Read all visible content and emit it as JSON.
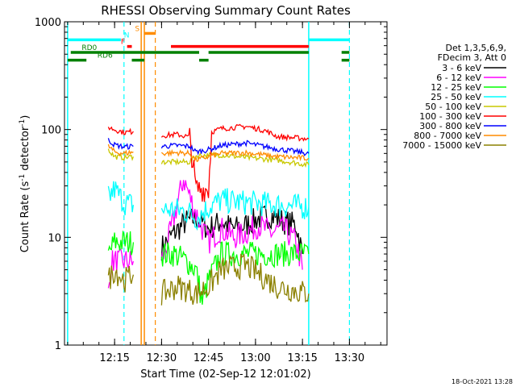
{
  "chart_data": {
    "type": "line",
    "title": "RHESSI Observing Summary Count Rates",
    "xlabel": "Start Time (02-Sep-12 12:01:02)",
    "ylabel_main": "Count Rate (s",
    "ylabel_sup1": "-1",
    "ylabel_mid": " detector",
    "ylabel_sup2": "-1",
    "ylabel_end": ")",
    "ylim": [
      1,
      1000
    ],
    "y_scale": "log",
    "x_range_min": [
      0,
      150
    ],
    "y_ticks": [
      {
        "value": 1,
        "label": "1"
      },
      {
        "value": 10,
        "label": "10"
      },
      {
        "value": 100,
        "label": "100"
      },
      {
        "value": 1000,
        "label": "1000"
      }
    ],
    "x_ticks": [
      {
        "value": 14,
        "label": "12:15"
      },
      {
        "value": 29,
        "label": "12:30"
      },
      {
        "value": 44,
        "label": "12:45"
      },
      {
        "value": 59,
        "label": "13:00"
      },
      {
        "value": 74,
        "label": "13:15"
      },
      {
        "value": 89,
        "label": "13:30"
      }
    ],
    "legend_header": [
      "Det 1,3,5,6,9,",
      "FDecim 3, Att 0"
    ],
    "series": [
      {
        "name": "3 - 6 keV",
        "color": "#000000",
        "segments": [
          [
            [
              29,
              8
            ],
            [
              33,
              11
            ],
            [
              37,
              14
            ],
            [
              40,
              15
            ],
            [
              44,
              12
            ],
            [
              48,
              14
            ],
            [
              52,
              12
            ],
            [
              56,
              13
            ],
            [
              60,
              15
            ],
            [
              64,
              16
            ],
            [
              68,
              14
            ],
            [
              72,
              13
            ],
            [
              74,
              7
            ]
          ]
        ]
      },
      {
        "name": "6 - 12 keV",
        "color": "#ff00ff",
        "segments": [
          [
            [
              12,
              3
            ],
            [
              13,
              6
            ],
            [
              16,
              6
            ],
            [
              20,
              6
            ]
          ],
          [
            [
              29,
              6
            ],
            [
              31,
              9
            ],
            [
              34,
              20
            ],
            [
              36,
              35
            ],
            [
              39,
              20
            ],
            [
              42,
              12
            ],
            [
              44,
              9
            ],
            [
              48,
              12
            ],
            [
              52,
              10
            ],
            [
              56,
              11
            ],
            [
              60,
              13
            ],
            [
              64,
              11
            ],
            [
              68,
              12
            ],
            [
              72,
              9
            ],
            [
              74,
              5
            ]
          ]
        ]
      },
      {
        "name": "12 - 25 keV",
        "color": "#00ff00",
        "segments": [
          [
            [
              12,
              7
            ],
            [
              14,
              9
            ],
            [
              17,
              9
            ],
            [
              20,
              9
            ]
          ],
          [
            [
              29,
              7
            ],
            [
              33,
              7
            ],
            [
              37,
              6
            ],
            [
              40,
              5
            ],
            [
              42,
              2.5
            ],
            [
              44,
              4
            ],
            [
              48,
              7
            ],
            [
              56,
              7
            ],
            [
              66,
              7
            ],
            [
              76,
              7
            ]
          ]
        ]
      },
      {
        "name": "25 - 50 keV",
        "color": "#00ffff",
        "segments": [
          [
            [
              12,
              23
            ],
            [
              14,
              28
            ],
            [
              17,
              21
            ],
            [
              20,
              20
            ]
          ],
          [
            [
              29,
              18
            ],
            [
              34,
              18
            ],
            [
              38,
              17
            ],
            [
              40,
              15
            ],
            [
              44,
              19
            ],
            [
              48,
              22
            ],
            [
              56,
              21
            ],
            [
              66,
              20
            ],
            [
              76,
              19
            ]
          ]
        ]
      },
      {
        "name": "50 - 100 keV",
        "color": "#c8c800",
        "segments": [
          [
            [
              12,
              65
            ],
            [
              14,
              56
            ],
            [
              17,
              55
            ],
            [
              20,
              56
            ]
          ],
          [
            [
              29,
              50
            ],
            [
              34,
              50
            ],
            [
              38,
              50
            ],
            [
              40,
              57
            ],
            [
              44,
              58
            ],
            [
              48,
              58
            ],
            [
              56,
              55
            ],
            [
              66,
              52
            ],
            [
              76,
              47
            ]
          ]
        ]
      },
      {
        "name": "100 - 300 keV",
        "color": "#ff0000",
        "segments": [
          [
            [
              12,
              105
            ],
            [
              14,
              100
            ],
            [
              17,
              94
            ],
            [
              20,
              96
            ]
          ],
          [
            [
              29,
              88
            ],
            [
              34,
              90
            ],
            [
              38,
              85
            ],
            [
              40,
              28
            ],
            [
              44,
              28
            ],
            [
              45,
              95
            ],
            [
              48,
              102
            ],
            [
              56,
              107
            ],
            [
              62,
              98
            ],
            [
              66,
              86
            ],
            [
              76,
              82
            ]
          ]
        ]
      },
      {
        "name": "300 - 800 keV",
        "color": "#0000ff",
        "segments": [
          [
            [
              12,
              80
            ],
            [
              14,
              72
            ],
            [
              17,
              69
            ],
            [
              20,
              70
            ]
          ],
          [
            [
              29,
              70
            ],
            [
              34,
              71
            ],
            [
              38,
              70
            ],
            [
              40,
              62
            ],
            [
              44,
              65
            ],
            [
              48,
              71
            ],
            [
              56,
              75
            ],
            [
              66,
              66
            ],
            [
              76,
              60
            ]
          ]
        ]
      },
      {
        "name": "800 - 7000 keV",
        "color": "#ff8c00",
        "segments": [
          [
            [
              12,
              70
            ],
            [
              14,
              62
            ],
            [
              17,
              60
            ],
            [
              20,
              62
            ]
          ],
          [
            [
              29,
              60
            ],
            [
              34,
              61
            ],
            [
              38,
              60
            ],
            [
              40,
              52
            ],
            [
              44,
              56
            ],
            [
              48,
              60
            ],
            [
              56,
              61
            ],
            [
              66,
              56
            ],
            [
              76,
              54
            ]
          ]
        ]
      },
      {
        "name": "7000 - 15000 keV",
        "color": "#8b8000",
        "segments": [
          [
            [
              12,
              4
            ],
            [
              14,
              5
            ],
            [
              17,
              4
            ],
            [
              20,
              4.5
            ]
          ],
          [
            [
              29,
              3
            ],
            [
              34,
              3.5
            ],
            [
              38,
              3.2
            ],
            [
              40,
              3
            ],
            [
              44,
              3.5
            ],
            [
              48,
              5
            ],
            [
              56,
              5.5
            ],
            [
              66,
              3.5
            ],
            [
              76,
              3
            ]
          ]
        ]
      }
    ],
    "annotations": {
      "cyan_solid_x": [
        -1,
        76
      ],
      "cyan_dashed_x": [
        17,
        89
      ],
      "orange_solid_x": [
        22.5,
        23.5
      ],
      "orange_dashed_x": [
        27
      ],
      "flags": [
        {
          "label": "RD0",
          "color": "#008000",
          "y_level": 520,
          "segments": [
            [
              0,
              41
            ],
            [
              44,
              76
            ],
            [
              86.5,
              89
            ]
          ],
          "label_x": 3.5
        },
        {
          "label": "RD6",
          "color": "#008000",
          "y_level": 440,
          "segments": [
            [
              -1,
              5
            ],
            [
              19.5,
              23.5
            ],
            [
              41,
              44
            ],
            [
              86.5,
              89
            ]
          ],
          "label_x": 8.5
        },
        {
          "label": "F",
          "color": "#ff0000",
          "y_level": 590,
          "segments": [
            [
              18,
              19.5
            ],
            [
              32,
              76
            ]
          ],
          "label_x": 16
        },
        {
          "label": "N",
          "color": "#00ffff",
          "y_level": 680,
          "segments": [
            [
              -1,
              16
            ],
            [
              76,
              89
            ]
          ],
          "label_x": 17
        },
        {
          "label": "S",
          "color": "#ff8c00",
          "y_level": 780,
          "segments": [
            [
              23.5,
              27
            ]
          ],
          "label_x": 20.5
        }
      ]
    },
    "timestamp": "18-Oct-2021 13:28"
  }
}
